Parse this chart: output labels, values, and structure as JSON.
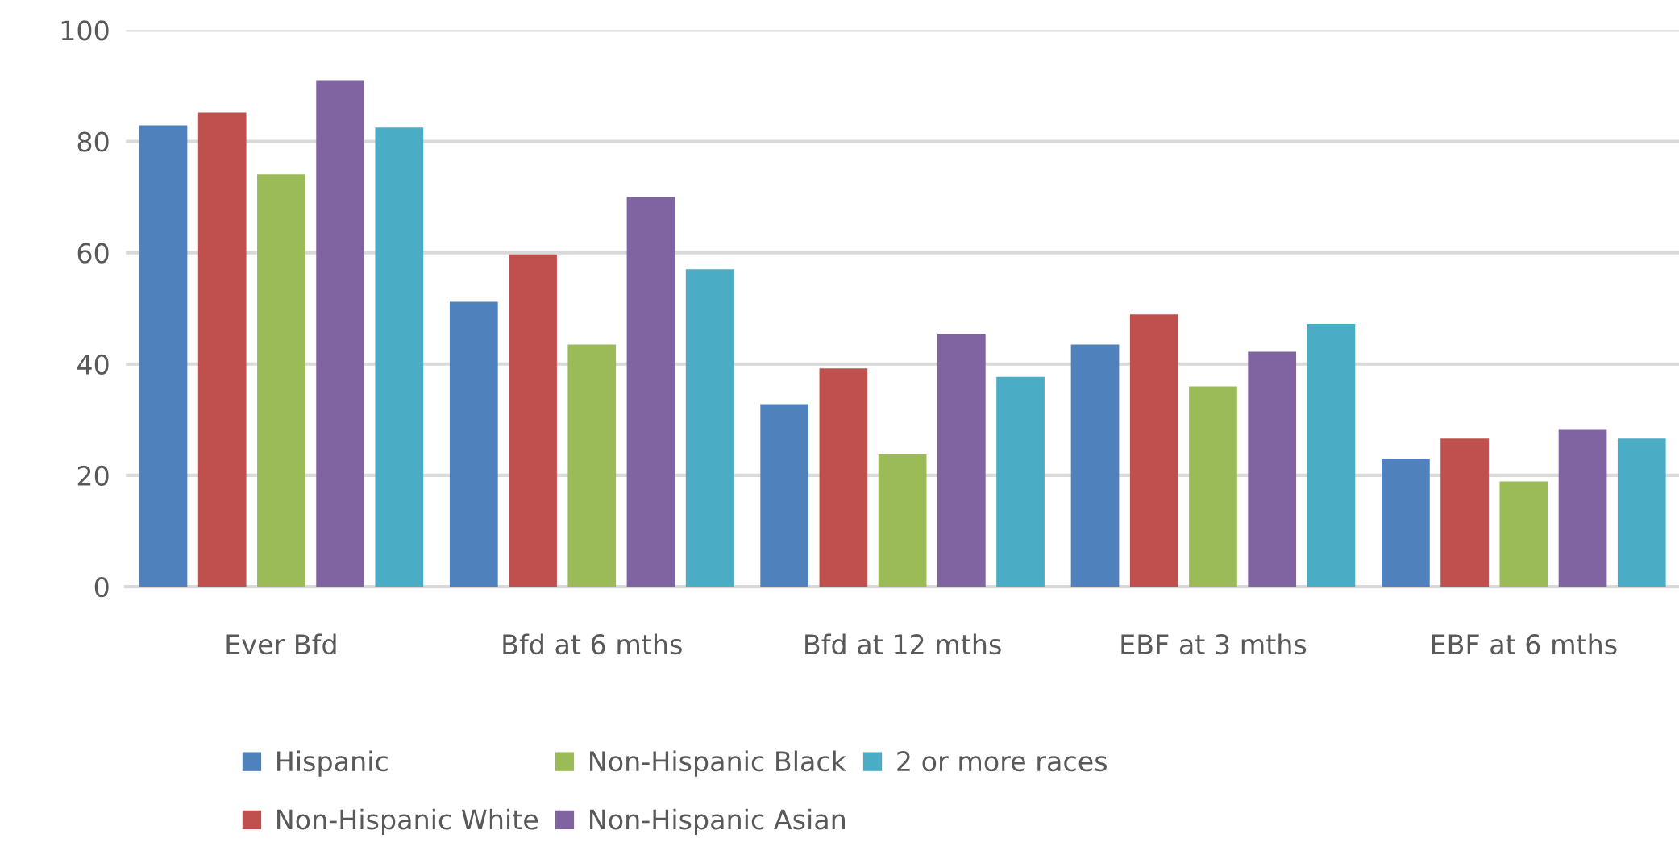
{
  "chart_data": {
    "type": "bar",
    "categories": [
      "Ever Bfd",
      "Bfd at 6 mths",
      "Bfd at 12 mths",
      "EBF at 3 mths",
      "EBF at 6 mths"
    ],
    "series": [
      {
        "name": "Hispanic",
        "color": "#4f81bd",
        "values": [
          82.9,
          51.2,
          32.8,
          43.5,
          23.0
        ]
      },
      {
        "name": "Non-Hispanic White",
        "color": "#c0504d",
        "values": [
          85.2,
          59.7,
          39.2,
          48.9,
          26.6
        ]
      },
      {
        "name": "Non-Hispanic Black",
        "color": "#9bbb59",
        "values": [
          74.1,
          43.5,
          23.8,
          36.0,
          18.9
        ]
      },
      {
        "name": "Non-Hispanic Asian",
        "color": "#8064a2",
        "values": [
          91.0,
          70.0,
          45.4,
          42.2,
          28.3
        ]
      },
      {
        "name": "2 or more races",
        "color": "#4bacc6",
        "values": [
          82.5,
          57.0,
          37.7,
          47.2,
          26.6
        ]
      }
    ],
    "ylim": [
      0,
      100
    ],
    "yticks": [
      0,
      20,
      40,
      60,
      80,
      100
    ],
    "grid": "y",
    "legend": "bottom"
  }
}
